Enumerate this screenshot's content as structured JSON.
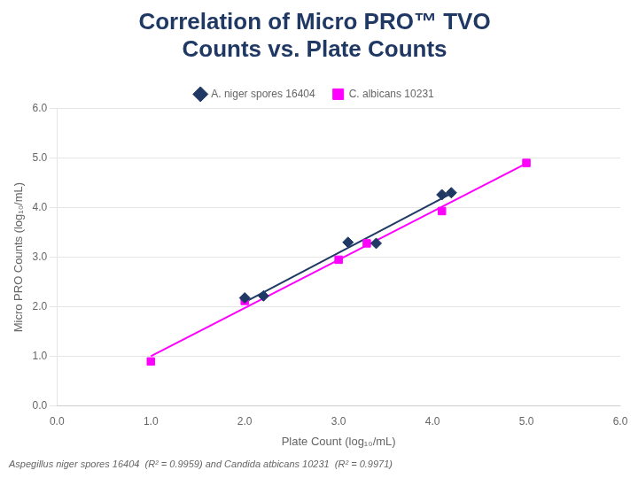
{
  "chart_data": {
    "type": "scatter",
    "title": [
      "Correlation of Micro PRO™ TVO",
      "Counts vs. Plate Counts"
    ],
    "title_color": "#1F3864",
    "x_label": "Plate Count (log₁₀/mL)",
    "y_label": "Micro PRO Counts (log₁₀/mL)",
    "footnote": "Aspegillus niger spores 16404  (R² = 0.9959) and Candida atbicans 10231  (R² = 0.9971)",
    "series": [
      {
        "name": "A. niger spores 16404",
        "color": "#1F3864",
        "marker": "diamond",
        "x": [
          2.0,
          2.2,
          3.1,
          3.4,
          4.1,
          4.2
        ],
        "values": [
          2.18,
          2.22,
          3.3,
          3.28,
          4.26,
          4.3
        ],
        "trend_x": [
          2.0,
          4.2
        ],
        "trend_values": [
          2.0949,
          4.2857
        ]
      },
      {
        "name": "C. albicans 10231",
        "color": "#FF00FF",
        "marker": "square",
        "x": [
          1.0,
          2.0,
          3.0,
          3.3,
          4.1,
          5.0
        ],
        "values": [
          0.9,
          2.12,
          2.95,
          3.28,
          3.93,
          4.9
        ],
        "trend_x": [
          1.0,
          5.0
        ],
        "trend_values": [
          1.0053,
          4.8918
        ]
      }
    ],
    "xlim": [
      0,
      6
    ],
    "ylim": [
      0,
      6
    ],
    "xticks": [
      {
        "value": 0,
        "label": "0.0"
      },
      {
        "value": 1,
        "label": "1.0"
      },
      {
        "value": 2,
        "label": "2.0"
      },
      {
        "value": 3,
        "label": "3.0"
      },
      {
        "value": 4,
        "label": "4.0"
      },
      {
        "value": 5,
        "label": "5.0"
      },
      {
        "value": 6,
        "label": "6.0"
      }
    ],
    "yticks": [
      {
        "value": 0,
        "label": "0.0"
      },
      {
        "value": 1,
        "label": "1.0"
      },
      {
        "value": 2,
        "label": "2.0"
      },
      {
        "value": 3,
        "label": "3.0"
      },
      {
        "value": 4,
        "label": "4.0"
      },
      {
        "value": 5,
        "label": "5.0"
      },
      {
        "value": 6,
        "label": "6.0"
      }
    ],
    "grid": "y",
    "legend": "top"
  }
}
